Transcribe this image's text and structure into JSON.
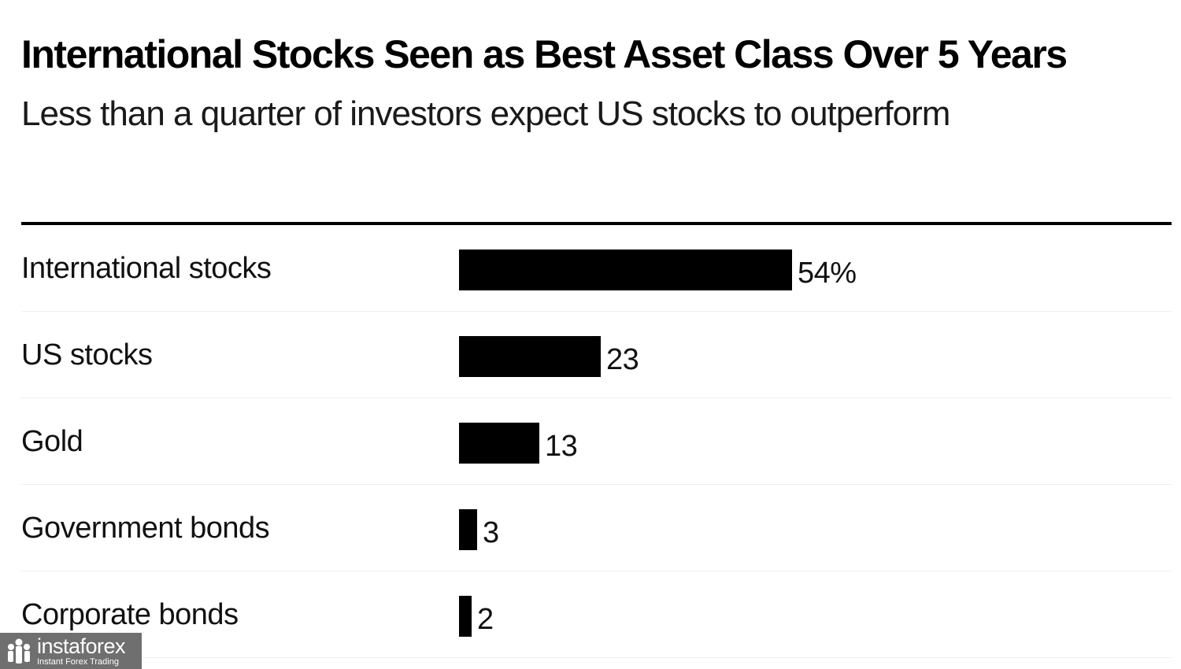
{
  "chart_data": {
    "type": "bar",
    "orientation": "horizontal",
    "title": "International Stocks Seen as Best Asset Class Over 5 Years",
    "subtitle": "Less than a quarter of investors expect US stocks to outperform",
    "categories": [
      "International stocks",
      "US stocks",
      "Gold",
      "Government bonds",
      "Corporate bonds"
    ],
    "values": [
      54,
      23,
      13,
      3,
      2
    ],
    "value_labels": [
      "54%",
      "23",
      "13",
      "3",
      "2"
    ],
    "xlim": [
      0,
      100
    ],
    "grid": false,
    "legend": "none",
    "bar_color": "#000000"
  },
  "watermark": {
    "name": "instaforex",
    "tagline": "Instant Forex Trading",
    "icon": "instaforex-logo-icon"
  }
}
